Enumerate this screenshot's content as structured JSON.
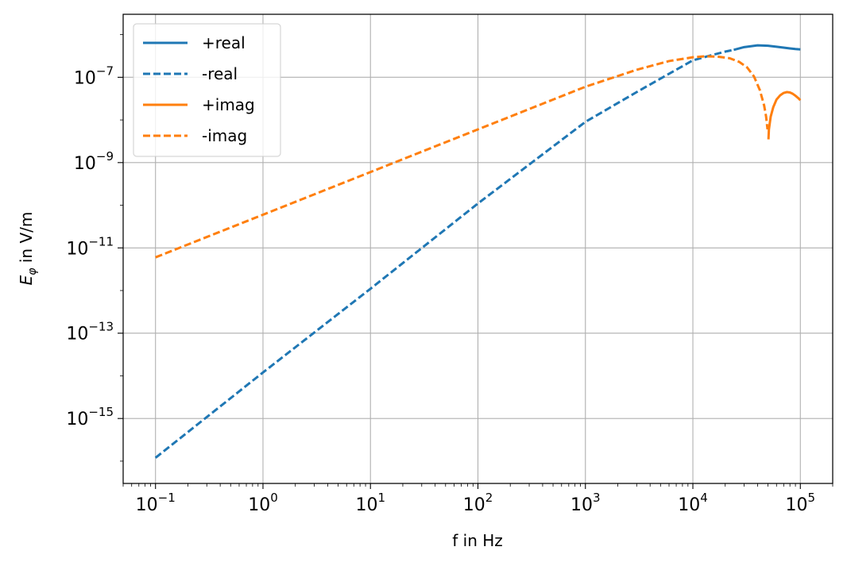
{
  "chart_data": {
    "type": "line",
    "title": "",
    "xlabel": "f in Hz",
    "ylabel_main": "E",
    "ylabel_subscript": "φ",
    "ylabel_suffix": " in V/m",
    "xscale": "log",
    "yscale": "log",
    "xlim": [
      0.05,
      200000
    ],
    "ylim": [
      3e-17,
      3e-06
    ],
    "grid": true,
    "legend_position": "top-left",
    "x_ticks": [
      {
        "value": 0.1,
        "base": "10",
        "exp": "−1"
      },
      {
        "value": 1,
        "base": "10",
        "exp": "0"
      },
      {
        "value": 10,
        "base": "10",
        "exp": "1"
      },
      {
        "value": 100,
        "base": "10",
        "exp": "2"
      },
      {
        "value": 1000,
        "base": "10",
        "exp": "3"
      },
      {
        "value": 10000,
        "base": "10",
        "exp": "4"
      },
      {
        "value": 100000,
        "base": "10",
        "exp": "5"
      }
    ],
    "y_ticks": [
      {
        "value": 1e-15,
        "base": "10",
        "exp": "−15"
      },
      {
        "value": 1e-13,
        "base": "10",
        "exp": "−13"
      },
      {
        "value": 1e-11,
        "base": "10",
        "exp": "−11"
      },
      {
        "value": 1e-09,
        "base": "10",
        "exp": "−9"
      },
      {
        "value": 1e-07,
        "base": "10",
        "exp": "−7"
      }
    ],
    "series": [
      {
        "name": "+real",
        "color": "#1f77b4",
        "dashed": false,
        "x": [
          24000,
          30000,
          40000,
          50000,
          60000,
          70000,
          80000,
          90000,
          100000
        ],
        "y": [
          4.4e-07,
          5.1e-07,
          5.6e-07,
          5.5e-07,
          5.2e-07,
          4.95e-07,
          4.75e-07,
          4.6e-07,
          4.5e-07
        ]
      },
      {
        "name": "-real",
        "color": "#1f77b4",
        "dashed": true,
        "x": [
          0.1,
          1,
          10,
          100,
          1000,
          3000,
          10000,
          15000,
          20000,
          24000
        ],
        "y": [
          1.2e-16,
          1.2e-14,
          1.1e-12,
          1.1e-10,
          9e-09,
          4.5e-08,
          2.5e-07,
          3.3e-07,
          4e-07,
          4.4e-07
        ]
      },
      {
        "name": "+imag",
        "color": "#ff7f0e",
        "dashed": false,
        "x": [
          50500,
          51000,
          53000,
          56000,
          60000,
          65000,
          70000,
          75000,
          80000,
          85000,
          90000,
          95000,
          100000
        ],
        "y": [
          3.5e-09,
          6e-09,
          1.2e-08,
          2e-08,
          3e-08,
          3.8e-08,
          4.3e-08,
          4.5e-08,
          4.4e-08,
          4.1e-08,
          3.7e-08,
          3.3e-08,
          2.9e-08
        ]
      },
      {
        "name": "-imag",
        "color": "#ff7f0e",
        "dashed": true,
        "x": [
          0.1,
          1,
          10,
          100,
          1000,
          3000,
          6000,
          10000,
          13000,
          17000,
          22000,
          27000,
          32000,
          37000,
          42000,
          46000,
          48000,
          49500
        ],
        "y": [
          6e-12,
          6e-11,
          6e-10,
          6e-09,
          6e-08,
          1.5e-07,
          2.4e-07,
          2.95e-07,
          3.1e-07,
          3.05e-07,
          2.8e-07,
          2.3e-07,
          1.7e-07,
          1.05e-07,
          5e-08,
          2.2e-08,
          1.2e-08,
          6e-09
        ]
      }
    ]
  }
}
